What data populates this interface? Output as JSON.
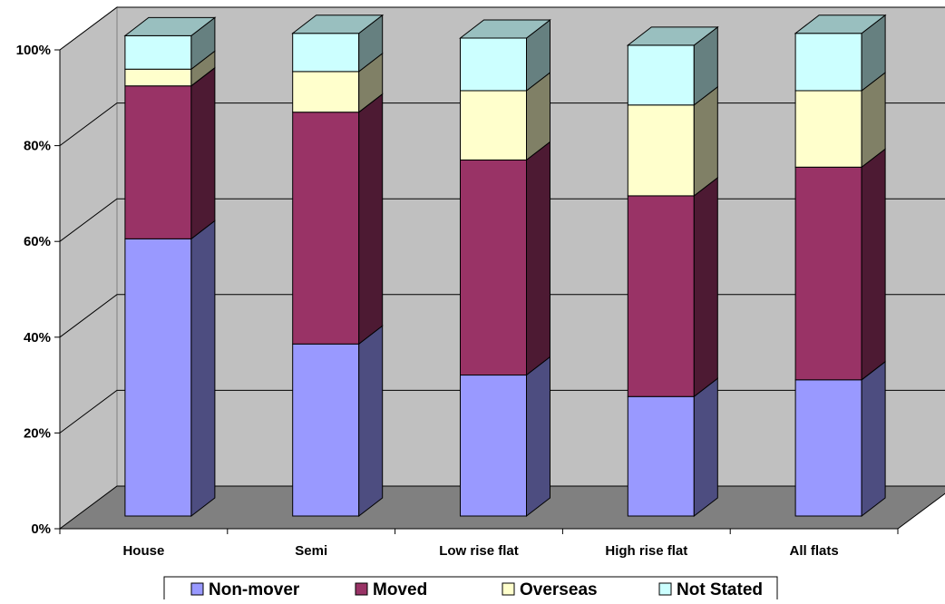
{
  "chart_data": {
    "type": "bar",
    "stacked": true,
    "three_d": true,
    "percent_stacked": true,
    "categories": [
      "House",
      "Semi",
      "Low rise flat",
      "High rise flat",
      "All flats"
    ],
    "series": [
      {
        "name": "Non-mover",
        "color": "#9999FF",
        "values": [
          58,
          36,
          29.5,
          25,
          28.5
        ]
      },
      {
        "name": "Moved",
        "color": "#993366",
        "values": [
          32,
          48.5,
          45,
          42,
          44.5
        ]
      },
      {
        "name": "Overseas",
        "color": "#FFFFCC",
        "values": [
          3.5,
          8.5,
          14.5,
          19,
          16
        ]
      },
      {
        "name": "Not Stated",
        "color": "#CCFFFF",
        "values": [
          7,
          8,
          11,
          12.5,
          12
        ]
      }
    ],
    "y_ticks": [
      "0%",
      "20%",
      "40%",
      "60%",
      "80%",
      "100%"
    ],
    "ylim": [
      0,
      100
    ],
    "grid": true,
    "legend_position": "bottom",
    "colors": {
      "wall": "#C0C0C0",
      "floor": "#808080",
      "gridline": "#000000"
    }
  }
}
